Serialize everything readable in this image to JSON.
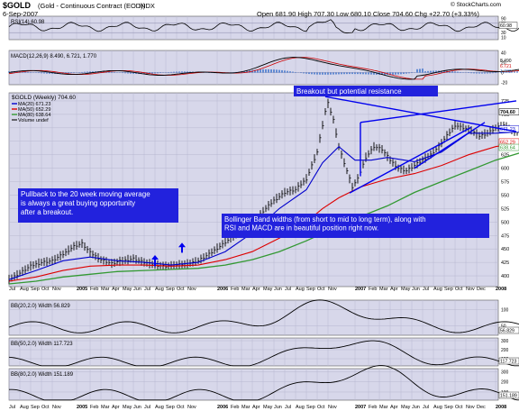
{
  "header": {
    "symbol": "$GOLD",
    "description": "(Gold - Continuous Contract (EOD))",
    "exchange": "INDX",
    "date": "6-Sep-2007",
    "quote": "Open 681.90  High 707.30  Low 680.10  Close 704.60  Chg +22.70 (+3.33%)",
    "credit": "© StockCharts.com"
  },
  "colors": {
    "background": "#d7d7ea",
    "price_bars": "#000000",
    "ma20": "#0000cc",
    "ma50": "#dd0000",
    "ma80": "#339933",
    "trendline": "#0000ee",
    "annotation_text": "#ffffff",
    "annotation_bg": "#2222dd",
    "indicator_line": "#000000",
    "macd_signal": "#cc0000",
    "macd_hist": "#4477cc"
  },
  "annotations": {
    "breakout": "Breakout but potential resistance",
    "pullback": "Pullback to the 20 week moving average is always a great buying opportunity after a breakout.",
    "bollinger": "Bollinger Band widths (from short to mid to long term), along with RSI and MACD are in beautiful position right now."
  },
  "chart_data": {
    "type": "line",
    "price": {
      "title": "$GOLD (Weekly) 704.60",
      "legend": [
        "MA(20) 671.23",
        "MA(50) 652.29",
        "MA(80) 638.64",
        "Volume undef"
      ],
      "y_ticks": [
        400,
        425,
        450,
        475,
        500,
        525,
        550,
        575,
        600,
        625,
        650,
        675,
        700,
        725
      ],
      "ylim": [
        380,
        740
      ],
      "price_labels": [
        "704.60",
        "671.23",
        "652.29",
        "638.64"
      ],
      "series_points": [
        [
          0,
          393
        ],
        [
          4,
          405
        ],
        [
          8,
          418
        ],
        [
          12,
          425
        ],
        [
          16,
          428
        ],
        [
          20,
          440
        ],
        [
          24,
          455
        ],
        [
          27,
          460
        ],
        [
          30,
          443
        ],
        [
          34,
          430
        ],
        [
          38,
          423
        ],
        [
          42,
          428
        ],
        [
          46,
          432
        ],
        [
          50,
          425
        ],
        [
          54,
          420
        ],
        [
          58,
          418
        ],
        [
          62,
          420
        ],
        [
          66,
          422
        ],
        [
          70,
          428
        ],
        [
          74,
          440
        ],
        [
          78,
          455
        ],
        [
          82,
          470
        ],
        [
          86,
          482
        ],
        [
          90,
          495
        ],
        [
          94,
          520
        ],
        [
          98,
          540
        ],
        [
          102,
          555
        ],
        [
          106,
          560
        ],
        [
          110,
          580
        ],
        [
          114,
          630
        ],
        [
          117,
          705
        ],
        [
          118,
          720
        ],
        [
          120,
          690
        ],
        [
          122,
          640
        ],
        [
          124,
          610
        ],
        [
          127,
          565
        ],
        [
          129,
          580
        ],
        [
          132,
          620
        ],
        [
          135,
          640
        ],
        [
          138,
          635
        ],
        [
          141,
          615
        ],
        [
          144,
          600
        ],
        [
          147,
          595
        ],
        [
          150,
          605
        ],
        [
          153,
          615
        ],
        [
          156,
          625
        ],
        [
          159,
          640
        ],
        [
          162,
          660
        ],
        [
          165,
          680
        ],
        [
          168,
          675
        ],
        [
          171,
          670
        ],
        [
          174,
          660
        ],
        [
          177,
          665
        ],
        [
          180,
          675
        ],
        [
          183,
          680
        ],
        [
          186,
          670
        ],
        [
          189,
          665
        ],
        [
          192,
          675
        ],
        [
          194,
          682
        ],
        [
          195,
          705
        ]
      ],
      "ma20": [
        [
          0,
          393
        ],
        [
          10,
          410
        ],
        [
          20,
          428
        ],
        [
          30,
          435
        ],
        [
          40,
          428
        ],
        [
          50,
          425
        ],
        [
          60,
          420
        ],
        [
          70,
          425
        ],
        [
          80,
          445
        ],
        [
          90,
          480
        ],
        [
          100,
          525
        ],
        [
          110,
          560
        ],
        [
          116,
          610
        ],
        [
          122,
          640
        ],
        [
          128,
          615
        ],
        [
          134,
          615
        ],
        [
          140,
          620
        ],
        [
          150,
          612
        ],
        [
          160,
          630
        ],
        [
          170,
          665
        ],
        [
          180,
          665
        ],
        [
          190,
          668
        ],
        [
          195,
          671
        ]
      ],
      "ma50": [
        [
          0,
          390
        ],
        [
          10,
          398
        ],
        [
          20,
          410
        ],
        [
          30,
          418
        ],
        [
          40,
          420
        ],
        [
          50,
          420
        ],
        [
          60,
          418
        ],
        [
          70,
          420
        ],
        [
          80,
          430
        ],
        [
          90,
          445
        ],
        [
          100,
          470
        ],
        [
          110,
          500
        ],
        [
          116,
          525
        ],
        [
          122,
          545
        ],
        [
          130,
          565
        ],
        [
          140,
          580
        ],
        [
          150,
          590
        ],
        [
          160,
          605
        ],
        [
          170,
          625
        ],
        [
          180,
          640
        ],
        [
          190,
          648
        ],
        [
          195,
          652
        ]
      ],
      "ma80": [
        [
          0,
          385
        ],
        [
          10,
          390
        ],
        [
          20,
          398
        ],
        [
          30,
          403
        ],
        [
          40,
          408
        ],
        [
          50,
          410
        ],
        [
          60,
          412
        ],
        [
          70,
          414
        ],
        [
          80,
          420
        ],
        [
          90,
          430
        ],
        [
          100,
          445
        ],
        [
          110,
          465
        ],
        [
          120,
          488
        ],
        [
          130,
          510
        ],
        [
          140,
          530
        ],
        [
          150,
          555
        ],
        [
          160,
          575
        ],
        [
          170,
          595
        ],
        [
          180,
          615
        ],
        [
          190,
          630
        ],
        [
          195,
          638
        ]
      ]
    },
    "rsi": {
      "label": "RSI(14) 60.98",
      "y_ticks": [
        10,
        30,
        70,
        90
      ],
      "right_value": "60.98"
    },
    "macd": {
      "label": "MACD(12,26,9) 8.490, 6.721, 1.770",
      "y_ticks": [
        -20,
        0,
        20,
        40
      ],
      "right_values": [
        "8.490",
        "6.721",
        "1.770"
      ],
      "zero_line": 0
    },
    "bb20": {
      "label": "BB(20,2.0) Width 56.829",
      "y_ticks": [
        50,
        100
      ],
      "right_value": "56.829"
    },
    "bb50": {
      "label": "BB(50,2.0) Width 117.723",
      "y_ticks": [
        100,
        200,
        300
      ],
      "right_value": "117.723"
    },
    "bb80": {
      "label": "BB(80,2.0) Width 151.189",
      "y_ticks": [
        100,
        200,
        300
      ],
      "right_value": "151.189"
    },
    "x_ticks": [
      {
        "i": 0,
        "label": "Jul"
      },
      {
        "i": 4,
        "label": "Aug"
      },
      {
        "i": 8,
        "label": "Sep"
      },
      {
        "i": 12,
        "label": "Oct"
      },
      {
        "i": 16,
        "label": "Nov"
      },
      {
        "i": 25,
        "label": "2005"
      },
      {
        "i": 30,
        "label": "Feb"
      },
      {
        "i": 34,
        "label": "Mar"
      },
      {
        "i": 38,
        "label": "Apr"
      },
      {
        "i": 42,
        "label": "May"
      },
      {
        "i": 46,
        "label": "Jun"
      },
      {
        "i": 50,
        "label": "Jul"
      },
      {
        "i": 54,
        "label": "Aug"
      },
      {
        "i": 58,
        "label": "Sep"
      },
      {
        "i": 62,
        "label": "Oct"
      },
      {
        "i": 66,
        "label": "Nov"
      },
      {
        "i": 77,
        "label": "2006"
      },
      {
        "i": 82,
        "label": "Feb"
      },
      {
        "i": 86,
        "label": "Mar"
      },
      {
        "i": 90,
        "label": "Apr"
      },
      {
        "i": 94,
        "label": "May"
      },
      {
        "i": 98,
        "label": "Jun"
      },
      {
        "i": 102,
        "label": "Jul"
      },
      {
        "i": 106,
        "label": "Aug"
      },
      {
        "i": 110,
        "label": "Sep"
      },
      {
        "i": 114,
        "label": "Oct"
      },
      {
        "i": 118,
        "label": "Nov"
      },
      {
        "i": 128,
        "label": "2007"
      },
      {
        "i": 133,
        "label": "Feb"
      },
      {
        "i": 137,
        "label": "Mar"
      },
      {
        "i": 141,
        "label": "Apr"
      },
      {
        "i": 145,
        "label": "May"
      },
      {
        "i": 149,
        "label": "Jun"
      },
      {
        "i": 153,
        "label": "Jul"
      },
      {
        "i": 157,
        "label": "Aug"
      },
      {
        "i": 161,
        "label": "Sep"
      },
      {
        "i": 165,
        "label": "Oct"
      },
      {
        "i": 169,
        "label": "Nov"
      },
      {
        "i": 173,
        "label": "Dec"
      },
      {
        "i": 180,
        "label": "2008"
      }
    ]
  }
}
